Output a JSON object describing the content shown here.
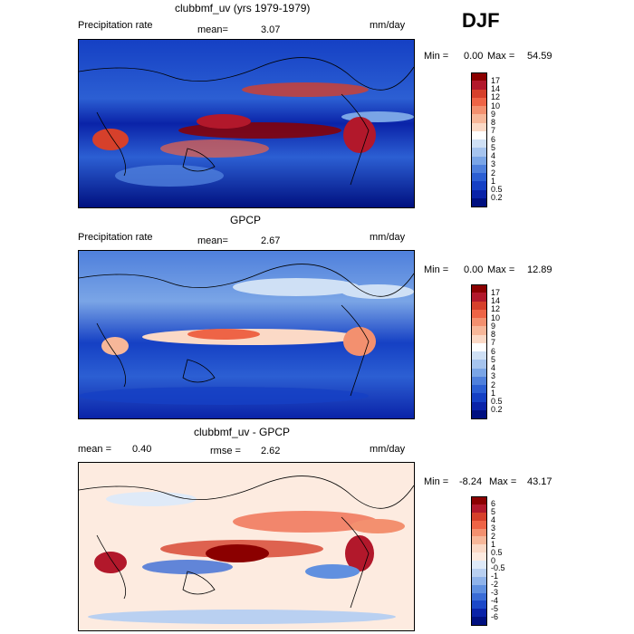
{
  "season": "DJF",
  "panels": [
    {
      "title": "clubbmf_uv (yrs 1979-1979)",
      "left_label": "Precipitation rate",
      "mean_label": "mean=",
      "mean_value": "3.07",
      "units": "mm/day",
      "min_label": "Min =",
      "min_value": "0.00",
      "max_label": "Max =",
      "max_value": "54.59",
      "colorbar": {
        "levels": [
          "17",
          "14",
          "12",
          "10",
          "9",
          "8",
          "7",
          "6",
          "5",
          "4",
          "3",
          "2",
          "1",
          "0.5",
          "0.2"
        ],
        "colors": [
          "#8b0000",
          "#b2182b",
          "#d6402b",
          "#ee6446",
          "#f3906f",
          "#f7b799",
          "#fbd9c6",
          "#ffffff",
          "#cfe0f5",
          "#a6c4ee",
          "#7aa5e6",
          "#4f80dc",
          "#2c5fd3",
          "#1540c4",
          "#0a23a8",
          "#001080"
        ]
      }
    },
    {
      "title": "GPCP",
      "left_label": "Precipitation rate",
      "mean_label": "mean=",
      "mean_value": "2.67",
      "units": "mm/day",
      "min_label": "Min =",
      "min_value": "0.00",
      "max_label": "Max =",
      "max_value": "12.89",
      "colorbar": {
        "levels": [
          "17",
          "14",
          "12",
          "10",
          "9",
          "8",
          "7",
          "6",
          "5",
          "4",
          "3",
          "2",
          "1",
          "0.5",
          "0.2"
        ],
        "colors": [
          "#8b0000",
          "#b2182b",
          "#d6402b",
          "#ee6446",
          "#f3906f",
          "#f7b799",
          "#fbd9c6",
          "#ffffff",
          "#cfe0f5",
          "#a6c4ee",
          "#7aa5e6",
          "#4f80dc",
          "#2c5fd3",
          "#1540c4",
          "#0a23a8",
          "#001080"
        ]
      }
    },
    {
      "title": "clubbmf_uv - GPCP",
      "left_label": "",
      "mean_label": "mean =",
      "mean_value": "0.40",
      "rmse_label": "rmse =",
      "rmse_value": "2.62",
      "units": "mm/day",
      "min_label": "Min =",
      "min_value": "-8.24",
      "max_label": "Max =",
      "max_value": "43.17",
      "colorbar": {
        "levels": [
          "6",
          "5",
          "4",
          "3",
          "2",
          "1",
          "0.5",
          "0",
          "-0.5",
          "-1",
          "-2",
          "-3",
          "-4",
          "-5",
          "-6"
        ],
        "colors": [
          "#8b0000",
          "#b2182b",
          "#d6402b",
          "#ee6446",
          "#f3906f",
          "#f7b799",
          "#fbd9c6",
          "#fdebe0",
          "#dfeaf8",
          "#b9d0f1",
          "#8fb3ea",
          "#6090e0",
          "#3a6cd6",
          "#1c48c8",
          "#0a23a8",
          "#001080"
        ]
      }
    }
  ]
}
